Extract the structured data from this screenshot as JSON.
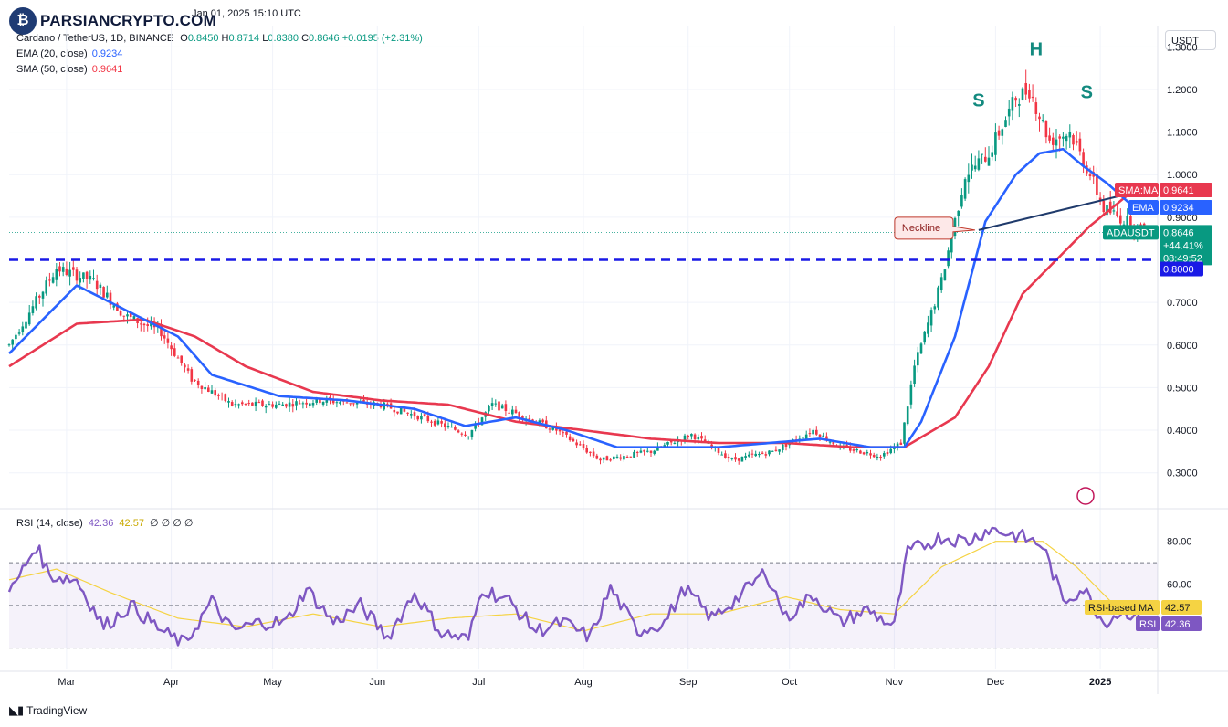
{
  "header": {
    "logo_text": "PARSIANCRYPTO.COM",
    "publish_line": "Jan 01, 2025 15:10 UTC",
    "symbol": "Cardano / TetherUS, 1D, BINANCE",
    "ohlc": {
      "o_label": "O",
      "o": "0.8450",
      "h_label": "H",
      "h": "0.8714",
      "l_label": "L",
      "l": "0.8380",
      "c_label": "C",
      "c": "0.8646",
      "change": "+0.0195 (+2.31%)"
    },
    "ema_label": "EMA (20, close)",
    "ema_value": "0.9234",
    "sma_label": "SMA (50, close)",
    "sma_value": "0.9641",
    "currency_button": "USDT"
  },
  "rsi_legend": {
    "label": "RSI (14, close)",
    "rsi": "42.36",
    "ma": "42.57",
    "extras": "∅ ∅ ∅ ∅"
  },
  "footer": {
    "brand": "TradingView"
  },
  "colors": {
    "up": "#089981",
    "down": "#f23645",
    "ema": "#2962ff",
    "sma": "#e8384f",
    "rsi": "#7e57c2",
    "rsi_ma": "#f5d343",
    "support": "#1a1ae6",
    "neckline": "#1f3a6b",
    "annot_teal": "#138a7f"
  },
  "chart_data": {
    "type": "candlestick",
    "title": "Cardano / TetherUS, 1D, BINANCE",
    "x_ticks": [
      "Mar",
      "Apr",
      "May",
      "Jun",
      "Jul",
      "Aug",
      "Sep",
      "Oct",
      "Nov",
      "Dec",
      "2025"
    ],
    "y_ticks": [
      "1.3000",
      "1.2000",
      "1.1000",
      "1.0000",
      "0.9000",
      "0.7000",
      "0.6000",
      "0.5000",
      "0.4000",
      "0.3000"
    ],
    "ylim": [
      0.22,
      1.35
    ],
    "price_path": [
      [
        0,
        0.6
      ],
      [
        14,
        0.78
      ],
      [
        25,
        0.75
      ],
      [
        34,
        0.67
      ],
      [
        45,
        0.63
      ],
      [
        54,
        0.52
      ],
      [
        66,
        0.46
      ],
      [
        80,
        0.46
      ],
      [
        92,
        0.47
      ],
      [
        110,
        0.46
      ],
      [
        122,
        0.43
      ],
      [
        136,
        0.39
      ],
      [
        143,
        0.46
      ],
      [
        150,
        0.44
      ],
      [
        162,
        0.4
      ],
      [
        175,
        0.33
      ],
      [
        190,
        0.35
      ],
      [
        202,
        0.39
      ],
      [
        214,
        0.33
      ],
      [
        226,
        0.35
      ],
      [
        238,
        0.4
      ],
      [
        246,
        0.36
      ],
      [
        258,
        0.34
      ],
      [
        264,
        0.37
      ],
      [
        268,
        0.55
      ],
      [
        276,
        0.75
      ],
      [
        283,
        1.0
      ],
      [
        290,
        1.05
      ],
      [
        298,
        1.18
      ],
      [
        302,
        1.2
      ],
      [
        308,
        1.08
      ],
      [
        314,
        1.1
      ],
      [
        320,
        1.0
      ],
      [
        324,
        0.92
      ],
      [
        331,
        0.89
      ],
      [
        336,
        0.8646
      ]
    ],
    "ema20_path": [
      [
        0,
        0.58
      ],
      [
        20,
        0.74
      ],
      [
        35,
        0.68
      ],
      [
        50,
        0.62
      ],
      [
        60,
        0.53
      ],
      [
        80,
        0.48
      ],
      [
        100,
        0.47
      ],
      [
        120,
        0.45
      ],
      [
        135,
        0.41
      ],
      [
        150,
        0.43
      ],
      [
        165,
        0.4
      ],
      [
        180,
        0.36
      ],
      [
        195,
        0.36
      ],
      [
        210,
        0.36
      ],
      [
        225,
        0.37
      ],
      [
        240,
        0.38
      ],
      [
        255,
        0.36
      ],
      [
        265,
        0.36
      ],
      [
        270,
        0.42
      ],
      [
        280,
        0.62
      ],
      [
        289,
        0.89
      ],
      [
        298,
        1.0
      ],
      [
        305,
        1.05
      ],
      [
        312,
        1.06
      ],
      [
        318,
        1.02
      ],
      [
        325,
        0.98
      ],
      [
        333,
        0.9234
      ]
    ],
    "sma50_path": [
      [
        0,
        0.55
      ],
      [
        20,
        0.65
      ],
      [
        40,
        0.66
      ],
      [
        55,
        0.62
      ],
      [
        70,
        0.55
      ],
      [
        90,
        0.49
      ],
      [
        110,
        0.47
      ],
      [
        130,
        0.46
      ],
      [
        150,
        0.42
      ],
      [
        170,
        0.4
      ],
      [
        190,
        0.38
      ],
      [
        210,
        0.37
      ],
      [
        230,
        0.37
      ],
      [
        250,
        0.36
      ],
      [
        265,
        0.36
      ],
      [
        280,
        0.43
      ],
      [
        290,
        0.55
      ],
      [
        300,
        0.72
      ],
      [
        310,
        0.8
      ],
      [
        320,
        0.88
      ],
      [
        333,
        0.9641
      ]
    ],
    "support_level": 0.8,
    "neckline": {
      "from": [
        287,
        0.87
      ],
      "to": [
        334,
        0.96
      ],
      "label": "Neckline"
    },
    "pattern_labels": [
      {
        "text": "S",
        "day": 287,
        "price": 1.16
      },
      {
        "text": "H",
        "day": 304,
        "price": 1.28
      },
      {
        "text": "S",
        "day": 319,
        "price": 1.18
      }
    ],
    "price_labels": [
      {
        "text": "SMA:MA",
        "value": "0.9641",
        "price": 0.9641,
        "color": "#e8384f"
      },
      {
        "text": "EMA",
        "value": "0.9234",
        "price": 0.9234,
        "color": "#2962ff"
      },
      {
        "text": "ADAUSDT",
        "value": "0.8646",
        "extra1": "+44.41%",
        "extra2": "08:49:52",
        "price": 0.8646,
        "color": "#089981"
      },
      {
        "text": "",
        "value": "0.8000",
        "price": 0.8,
        "color": "#1a1ae6"
      }
    ],
    "rsi": {
      "y_ticks": [
        "80.00",
        "60.00"
      ],
      "ylim": [
        20,
        94
      ],
      "levels": [
        70,
        50,
        30
      ],
      "path": [
        [
          0,
          55
        ],
        [
          8,
          78
        ],
        [
          12,
          64
        ],
        [
          20,
          62
        ],
        [
          28,
          40
        ],
        [
          36,
          50
        ],
        [
          46,
          37
        ],
        [
          52,
          32
        ],
        [
          60,
          52
        ],
        [
          66,
          38
        ],
        [
          74,
          42
        ],
        [
          82,
          42
        ],
        [
          88,
          58
        ],
        [
          96,
          42
        ],
        [
          104,
          50
        ],
        [
          112,
          35
        ],
        [
          120,
          56
        ],
        [
          128,
          37
        ],
        [
          136,
          34
        ],
        [
          140,
          58
        ],
        [
          148,
          52
        ],
        [
          156,
          38
        ],
        [
          164,
          42
        ],
        [
          172,
          35
        ],
        [
          178,
          58
        ],
        [
          186,
          38
        ],
        [
          194,
          42
        ],
        [
          200,
          58
        ],
        [
          208,
          44
        ],
        [
          216,
          54
        ],
        [
          224,
          66
        ],
        [
          230,
          44
        ],
        [
          238,
          55
        ],
        [
          246,
          42
        ],
        [
          254,
          48
        ],
        [
          262,
          40
        ],
        [
          266,
          75
        ],
        [
          276,
          82
        ],
        [
          284,
          80
        ],
        [
          290,
          86
        ],
        [
          300,
          82
        ],
        [
          306,
          78
        ],
        [
          312,
          52
        ],
        [
          318,
          58
        ],
        [
          324,
          42
        ],
        [
          330,
          48
        ],
        [
          336,
          42.36
        ]
      ],
      "ma_path": [
        [
          0,
          62
        ],
        [
          14,
          67
        ],
        [
          30,
          56
        ],
        [
          50,
          44
        ],
        [
          70,
          40
        ],
        [
          90,
          46
        ],
        [
          110,
          40
        ],
        [
          130,
          44
        ],
        [
          150,
          46
        ],
        [
          170,
          38
        ],
        [
          190,
          46
        ],
        [
          210,
          46
        ],
        [
          230,
          54
        ],
        [
          246,
          48
        ],
        [
          262,
          46
        ],
        [
          276,
          68
        ],
        [
          292,
          80
        ],
        [
          306,
          80
        ],
        [
          316,
          68
        ],
        [
          326,
          52
        ],
        [
          336,
          42.57
        ]
      ],
      "labels": [
        {
          "text": "RSI-based MA",
          "value": "42.57",
          "color": "#f5d343"
        },
        {
          "text": "RSI",
          "value": "42.36",
          "color": "#7e57c2"
        }
      ]
    }
  }
}
